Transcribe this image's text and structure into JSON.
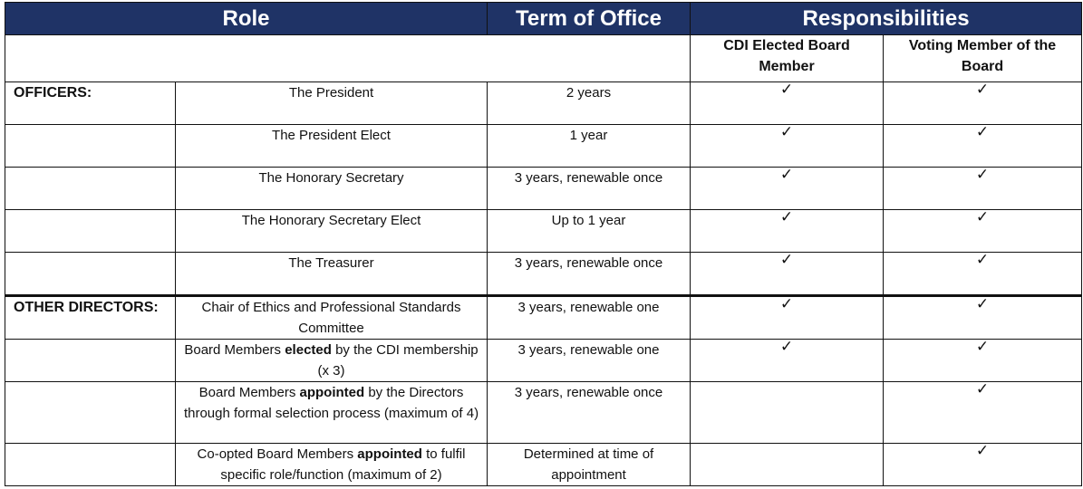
{
  "header": {
    "role": "Role",
    "term": "Term of Office",
    "responsibilities": "Responsibilities"
  },
  "subheader": {
    "cdi_elected": "CDI Elected Board Member",
    "voting_member": "Voting Member of the Board"
  },
  "check_mark": "✓",
  "rows": [
    {
      "category": "OFFICERS:",
      "role_pre": "The President",
      "role_bold": "",
      "role_post": "",
      "term": "2 years",
      "cdi": "✓",
      "voting": "✓"
    },
    {
      "category": "",
      "role_pre": "The President Elect",
      "role_bold": "",
      "role_post": "",
      "term": "1 year",
      "cdi": "✓",
      "voting": "✓"
    },
    {
      "category": "",
      "role_pre": "The Honorary Secretary",
      "role_bold": "",
      "role_post": "",
      "term": "3 years, renewable once",
      "cdi": "✓",
      "voting": "✓"
    },
    {
      "category": "",
      "role_pre": "The Honorary Secretary Elect",
      "role_bold": "",
      "role_post": "",
      "term": "Up to 1 year",
      "cdi": "✓",
      "voting": "✓"
    },
    {
      "category": "",
      "role_pre": "The Treasurer",
      "role_bold": "",
      "role_post": "",
      "term": "3 years, renewable once",
      "cdi": "✓",
      "voting": "✓"
    },
    {
      "category": "OTHER DIRECTORS:",
      "role_pre": "Chair of Ethics and Professional Standards Committee",
      "role_bold": "",
      "role_post": "",
      "term": "3 years, renewable one",
      "cdi": "✓",
      "voting": "✓"
    },
    {
      "category": "",
      "role_pre": "Board Members ",
      "role_bold": "elected",
      "role_post": " by the CDI membership (x 3)",
      "term": "3 years, renewable one",
      "cdi": "✓",
      "voting": "✓"
    },
    {
      "category": "",
      "role_pre": "Board Members ",
      "role_bold": "appointed",
      "role_post": " by the Directors through formal selection process (maximum of 4)",
      "term": "3 years, renewable once",
      "cdi": "",
      "voting": "✓"
    },
    {
      "category": "",
      "role_pre": "Co-opted Board Members ",
      "role_bold": "appointed",
      "role_post": " to fulfil specific role/function (maximum of 2)",
      "term": "Determined at time of appointment",
      "cdi": "",
      "voting": "✓"
    }
  ]
}
